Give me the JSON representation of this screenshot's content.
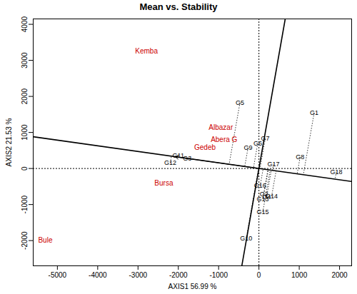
{
  "chart_data": {
    "type": "biplot",
    "title": "Mean vs. Stability",
    "x_label": "AXIS1 56.99 %",
    "y_label": "AXIS2 21.53 %",
    "xlim": [
      -5600,
      2300
    ],
    "ylim": [
      -2700,
      4150
    ],
    "xticks": [
      -5000,
      -4000,
      -3000,
      -2000,
      -1000,
      0,
      1000,
      2000
    ],
    "yticks": [
      -2000,
      -1000,
      0,
      1000,
      2000,
      3000,
      4000
    ],
    "origin": {
      "x": 0,
      "y": 0
    },
    "average_environment": {
      "x": -2080,
      "y": 327
    },
    "environments": {
      "color": "#cc0000",
      "labels": [
        "Kemba",
        "Albazar",
        "Abera G",
        "Gedeb",
        "Bursa",
        "Bule"
      ],
      "x": [
        -2790,
        -945,
        -866,
        -1340,
        -2360,
        -5300
      ],
      "y": [
        3250,
        1135,
        808,
        577,
        -404,
        -2000
      ]
    },
    "genotypes": {
      "color": "#000000",
      "labels": [
        "G1",
        "G2",
        "G3",
        "G4",
        "G5",
        "G6",
        "G7",
        "G8",
        "G9",
        "G10",
        "G11",
        "G12",
        "G13",
        "G14",
        "G15",
        "G16",
        "G17",
        "G18"
      ],
      "x": [
        1370,
        126,
        -1780,
        190,
        -470,
        -30,
        157,
        1020,
        -270,
        -315,
        -2000,
        -2200,
        95,
        315,
        95,
        30,
        360,
        1920
      ],
      "y": [
        1540,
        -710,
        270,
        -790,
        1830,
        690,
        827,
        308,
        577,
        -1940,
        365,
        155,
        -845,
        -770,
        -1210,
        -480,
        115,
        -96
      ]
    }
  }
}
